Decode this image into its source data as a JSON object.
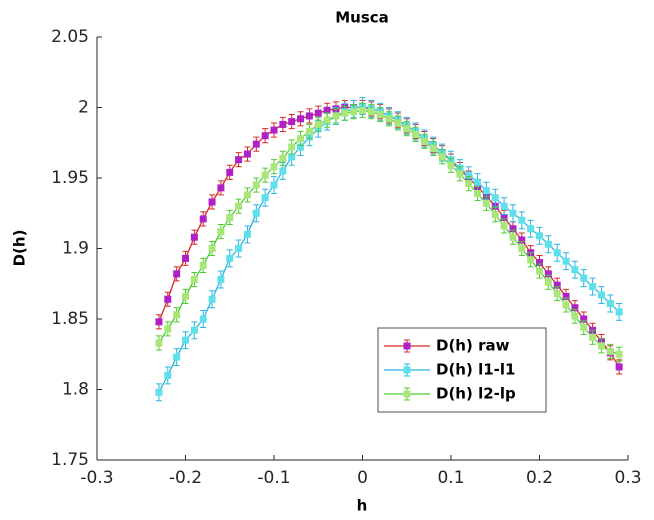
{
  "chart_data": {
    "type": "errorbar-line",
    "title": "Musca",
    "xlabel": "h",
    "ylabel": "D(h)",
    "x": [
      -0.23,
      -0.22,
      -0.21,
      -0.2,
      -0.19,
      -0.18,
      -0.17,
      -0.16,
      -0.15,
      -0.14,
      -0.13,
      -0.12,
      -0.11,
      -0.1,
      -0.09,
      -0.08,
      -0.07,
      -0.06,
      -0.05,
      -0.04,
      -0.03,
      -0.02,
      -0.01,
      0,
      0.01,
      0.02,
      0.03,
      0.04,
      0.05,
      0.06,
      0.07,
      0.08,
      0.09,
      0.1,
      0.11,
      0.12,
      0.13,
      0.14,
      0.15,
      0.16,
      0.17,
      0.18,
      0.19,
      0.2,
      0.21,
      0.22,
      0.23,
      0.24,
      0.25,
      0.26,
      0.27,
      0.28,
      0.29
    ],
    "series": [
      {
        "name": "D(h) raw",
        "color": "#d62828",
        "marker_color": "#b020c8",
        "error": 0.005,
        "values": [
          1.848,
          1.864,
          1.882,
          1.893,
          1.908,
          1.921,
          1.933,
          1.943,
          1.954,
          1.963,
          1.967,
          1.974,
          1.98,
          1.984,
          1.988,
          1.99,
          1.992,
          1.994,
          1.996,
          1.998,
          1.999,
          2.0,
          2.0,
          2.0,
          1.999,
          1.997,
          1.994,
          1.991,
          1.987,
          1.983,
          1.978,
          1.973,
          1.968,
          1.962,
          1.956,
          1.95,
          1.944,
          1.937,
          1.93,
          1.922,
          1.914,
          1.906,
          1.897,
          1.89,
          1.882,
          1.874,
          1.866,
          1.858,
          1.85,
          1.842,
          1.834,
          1.826,
          1.816
        ]
      },
      {
        "name": "D(h) l1-l1",
        "color": "#2ab4e4",
        "marker_color": "#5ee0ea",
        "error": 0.006,
        "values": [
          1.798,
          1.81,
          1.823,
          1.835,
          1.842,
          1.85,
          1.864,
          1.878,
          1.893,
          1.9,
          1.91,
          1.925,
          1.936,
          1.945,
          1.955,
          1.965,
          1.972,
          1.979,
          1.985,
          1.99,
          1.994,
          1.997,
          1.999,
          2.001,
          1.999,
          1.997,
          1.994,
          1.991,
          1.987,
          1.983,
          1.978,
          1.973,
          1.968,
          1.963,
          1.957,
          1.952,
          1.947,
          1.941,
          1.936,
          1.93,
          1.925,
          1.92,
          1.914,
          1.909,
          1.903,
          1.897,
          1.891,
          1.885,
          1.879,
          1.873,
          1.867,
          1.861,
          1.855
        ]
      },
      {
        "name": "D(h) l2-lp",
        "color": "#4ccc30",
        "marker_color": "#a8e67a",
        "error": 0.005,
        "values": [
          1.833,
          1.843,
          1.853,
          1.866,
          1.878,
          1.888,
          1.9,
          1.912,
          1.922,
          1.93,
          1.938,
          1.945,
          1.952,
          1.958,
          1.964,
          1.972,
          1.978,
          1.983,
          1.988,
          1.991,
          1.994,
          1.996,
          1.997,
          1.998,
          1.997,
          1.995,
          1.992,
          1.989,
          1.985,
          1.981,
          1.976,
          1.971,
          1.965,
          1.959,
          1.953,
          1.946,
          1.939,
          1.932,
          1.924,
          1.916,
          1.908,
          1.9,
          1.892,
          1.884,
          1.876,
          1.868,
          1.86,
          1.852,
          1.844,
          1.837,
          1.831,
          1.827,
          1.825
        ]
      }
    ],
    "xlim": [
      -0.3,
      0.3
    ],
    "xticks": [
      -0.3,
      -0.2,
      -0.1,
      0,
      0.1,
      0.2,
      0.3
    ],
    "ylim": [
      1.75,
      2.05
    ],
    "yticks": [
      1.75,
      1.8,
      1.85,
      1.9,
      1.95,
      2,
      2.05
    ],
    "legend": "southeast",
    "grid": false
  }
}
